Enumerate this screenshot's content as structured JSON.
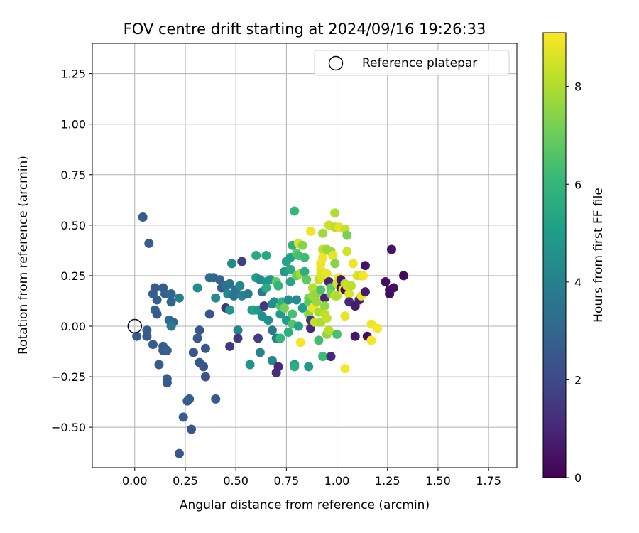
{
  "chart_data": {
    "type": "scatter",
    "title": "FOV centre drift starting at 2024/09/16 19:26:33",
    "xlabel": "Angular distance from reference (arcmin)",
    "ylabel": "Rotation from reference (arcmin)",
    "xlim": [
      -0.21,
      1.89
    ],
    "ylim": [
      -0.7,
      1.4
    ],
    "xticks": [
      0.0,
      0.25,
      0.5,
      0.75,
      1.0,
      1.25,
      1.5,
      1.75
    ],
    "xtick_labels": [
      "0.00",
      "0.25",
      "0.50",
      "0.75",
      "1.00",
      "1.25",
      "1.50",
      "1.75"
    ],
    "yticks": [
      -0.5,
      -0.25,
      0.0,
      0.25,
      0.5,
      0.75,
      1.0,
      1.25
    ],
    "ytick_labels": [
      "−0.50",
      "−0.25",
      "0.00",
      "0.25",
      "0.50",
      "0.75",
      "1.00",
      "1.25"
    ],
    "grid": true,
    "legend": {
      "placement": "top-right",
      "label": "Reference platepar"
    },
    "reference_point": {
      "x": 0.0,
      "y": 0.0
    },
    "colorbar": {
      "label": "Hours from first FF file",
      "range": [
        0,
        9.1
      ],
      "ticks": [
        0,
        2,
        4,
        6,
        8
      ],
      "tick_labels": [
        "0",
        "2",
        "4",
        "6",
        "8"
      ],
      "colormap": "viridis"
    },
    "points": [
      {
        "x": 0.04,
        "y": 0.54,
        "h": 2.6
      },
      {
        "x": 0.07,
        "y": 0.41,
        "h": 2.7
      },
      {
        "x": 0.01,
        "y": -0.05,
        "h": 2.6
      },
      {
        "x": 0.06,
        "y": -0.05,
        "h": 2.6
      },
      {
        "x": 0.06,
        "y": -0.02,
        "h": 2.7
      },
      {
        "x": 0.09,
        "y": 0.16,
        "h": 2.7
      },
      {
        "x": 0.1,
        "y": 0.19,
        "h": 2.6
      },
      {
        "x": 0.11,
        "y": 0.13,
        "h": 2.7
      },
      {
        "x": 0.1,
        "y": 0.08,
        "h": 2.8
      },
      {
        "x": 0.11,
        "y": 0.06,
        "h": 2.6
      },
      {
        "x": 0.09,
        "y": -0.09,
        "h": 2.7
      },
      {
        "x": 0.12,
        "y": -0.19,
        "h": 2.6
      },
      {
        "x": 0.14,
        "y": 0.19,
        "h": 2.6
      },
      {
        "x": 0.15,
        "y": 0.16,
        "h": 2.7
      },
      {
        "x": 0.14,
        "y": -0.1,
        "h": 2.7
      },
      {
        "x": 0.14,
        "y": -0.12,
        "h": 2.6
      },
      {
        "x": 0.16,
        "y": -0.12,
        "h": 2.8
      },
      {
        "x": 0.18,
        "y": 0.16,
        "h": 3.0
      },
      {
        "x": 0.18,
        "y": 0.12,
        "h": 2.9
      },
      {
        "x": 0.17,
        "y": 0.03,
        "h": 3.2
      },
      {
        "x": 0.19,
        "y": 0.02,
        "h": 3.0
      },
      {
        "x": 0.18,
        "y": 0.0,
        "h": 3.7
      },
      {
        "x": 0.16,
        "y": -0.26,
        "h": 2.8
      },
      {
        "x": 0.16,
        "y": -0.28,
        "h": 2.6
      },
      {
        "x": 0.22,
        "y": 0.14,
        "h": 3.9
      },
      {
        "x": 0.24,
        "y": -0.45,
        "h": 2.6
      },
      {
        "x": 0.26,
        "y": -0.37,
        "h": 2.6
      },
      {
        "x": 0.27,
        "y": -0.36,
        "h": 2.7
      },
      {
        "x": 0.28,
        "y": -0.51,
        "h": 2.5
      },
      {
        "x": 0.22,
        "y": -0.63,
        "h": 2.4
      },
      {
        "x": 0.29,
        "y": -0.13,
        "h": 2.5
      },
      {
        "x": 0.31,
        "y": -0.06,
        "h": 2.6
      },
      {
        "x": 0.32,
        "y": -0.02,
        "h": 2.5
      },
      {
        "x": 0.32,
        "y": -0.18,
        "h": 2.5
      },
      {
        "x": 0.34,
        "y": -0.2,
        "h": 2.5
      },
      {
        "x": 0.35,
        "y": -0.25,
        "h": 2.4
      },
      {
        "x": 0.35,
        "y": -0.11,
        "h": 2.5
      },
      {
        "x": 0.31,
        "y": 0.19,
        "h": 4.5
      },
      {
        "x": 0.37,
        "y": 0.24,
        "h": 3.1
      },
      {
        "x": 0.37,
        "y": 0.06,
        "h": 2.5
      },
      {
        "x": 0.4,
        "y": -0.36,
        "h": 2.6
      },
      {
        "x": 0.39,
        "y": 0.24,
        "h": 3.0
      },
      {
        "x": 0.4,
        "y": 0.14,
        "h": 4.4
      },
      {
        "x": 0.42,
        "y": 0.23,
        "h": 2.9
      },
      {
        "x": 0.43,
        "y": 0.19,
        "h": 2.8
      },
      {
        "x": 0.45,
        "y": 0.2,
        "h": 3.4
      },
      {
        "x": 0.45,
        "y": 0.09,
        "h": 1.5
      },
      {
        "x": 0.46,
        "y": 0.16,
        "h": 4.3
      },
      {
        "x": 0.47,
        "y": 0.08,
        "h": 4.8
      },
      {
        "x": 0.47,
        "y": 0.21,
        "h": 3.5
      },
      {
        "x": 0.48,
        "y": 0.31,
        "h": 4.3
      },
      {
        "x": 0.47,
        "y": -0.1,
        "h": 1.5
      },
      {
        "x": 0.49,
        "y": 0.15,
        "h": 3.5
      },
      {
        "x": 0.5,
        "y": 0.18,
        "h": 3.4
      },
      {
        "x": 0.51,
        "y": -0.02,
        "h": 4.2
      },
      {
        "x": 0.51,
        "y": -0.06,
        "h": 1.5
      },
      {
        "x": 0.52,
        "y": 0.2,
        "h": 4.2
      },
      {
        "x": 0.53,
        "y": 0.32,
        "h": 1.7
      },
      {
        "x": 0.53,
        "y": 0.15,
        "h": 4.1
      },
      {
        "x": 0.56,
        "y": 0.16,
        "h": 3.7
      },
      {
        "x": 0.57,
        "y": -0.19,
        "h": 4.7
      },
      {
        "x": 0.58,
        "y": 0.08,
        "h": 5.0
      },
      {
        "x": 0.59,
        "y": 0.08,
        "h": 5.3
      },
      {
        "x": 0.6,
        "y": 0.35,
        "h": 5.5
      },
      {
        "x": 0.6,
        "y": 0.24,
        "h": 5.0
      },
      {
        "x": 0.61,
        "y": 0.08,
        "h": 5.0
      },
      {
        "x": 0.61,
        "y": -0.06,
        "h": 1.6
      },
      {
        "x": 0.62,
        "y": 0.23,
        "h": 4.4
      },
      {
        "x": 0.63,
        "y": 0.17,
        "h": 3.7
      },
      {
        "x": 0.62,
        "y": -0.13,
        "h": 4.1
      },
      {
        "x": 0.63,
        "y": 0.05,
        "h": 4.5
      },
      {
        "x": 0.64,
        "y": 0.1,
        "h": 1.5
      },
      {
        "x": 0.65,
        "y": 0.35,
        "h": 5.5
      },
      {
        "x": 0.65,
        "y": 0.22,
        "h": 4.7
      },
      {
        "x": 0.65,
        "y": 0.19,
        "h": 5.6
      },
      {
        "x": 0.66,
        "y": 0.03,
        "h": 4.6
      },
      {
        "x": 0.67,
        "y": 0.23,
        "h": 4.7
      },
      {
        "x": 0.68,
        "y": 0.11,
        "h": 4.5
      },
      {
        "x": 0.68,
        "y": -0.02,
        "h": 3.6
      },
      {
        "x": 0.68,
        "y": -0.17,
        "h": 4.3
      },
      {
        "x": 0.69,
        "y": 0.12,
        "h": 4.6
      },
      {
        "x": 0.7,
        "y": -0.06,
        "h": 4.0
      },
      {
        "x": 0.7,
        "y": -0.23,
        "h": 1.2
      },
      {
        "x": 0.71,
        "y": -0.2,
        "h": 1.0
      },
      {
        "x": 0.7,
        "y": 0.22,
        "h": 6.8
      },
      {
        "x": 0.71,
        "y": 0.2,
        "h": 5.9
      },
      {
        "x": 0.72,
        "y": 0.06,
        "h": 4.9
      },
      {
        "x": 0.72,
        "y": -0.06,
        "h": 6.0
      },
      {
        "x": 0.72,
        "y": 0.1,
        "h": 6.6
      },
      {
        "x": 0.73,
        "y": 0.12,
        "h": 5.8
      },
      {
        "x": 0.74,
        "y": 0.09,
        "h": 7.2
      },
      {
        "x": 0.74,
        "y": 0.27,
        "h": 4.9
      },
      {
        "x": 0.75,
        "y": 0.32,
        "h": 5.3
      },
      {
        "x": 0.75,
        "y": 0.03,
        "h": 5.0
      },
      {
        "x": 0.76,
        "y": 0.13,
        "h": 4.4
      },
      {
        "x": 0.76,
        "y": -0.03,
        "h": 5.7
      },
      {
        "x": 0.77,
        "y": 0.34,
        "h": 5.2
      },
      {
        "x": 0.77,
        "y": 0.28,
        "h": 5.5
      },
      {
        "x": 0.77,
        "y": 0.22,
        "h": 5.3
      },
      {
        "x": 0.78,
        "y": 0.4,
        "h": 5.8
      },
      {
        "x": 0.78,
        "y": 0.06,
        "h": 6.4
      },
      {
        "x": 0.78,
        "y": 0.01,
        "h": 6.6
      },
      {
        "x": 0.79,
        "y": 0.57,
        "h": 6.0
      },
      {
        "x": 0.79,
        "y": -0.19,
        "h": 5.0
      },
      {
        "x": 0.79,
        "y": -0.2,
        "h": 5.7
      },
      {
        "x": 0.8,
        "y": 0.36,
        "h": 6.8
      },
      {
        "x": 0.8,
        "y": 0.25,
        "h": 7.1
      },
      {
        "x": 0.8,
        "y": 0.13,
        "h": 4.5
      },
      {
        "x": 0.81,
        "y": 0.41,
        "h": 8.6
      },
      {
        "x": 0.81,
        "y": 0.35,
        "h": 6.4
      },
      {
        "x": 0.81,
        "y": 0.0,
        "h": 5.3
      },
      {
        "x": 0.82,
        "y": -0.08,
        "h": 9.0
      },
      {
        "x": 0.82,
        "y": 0.26,
        "h": 7.8
      },
      {
        "x": 0.83,
        "y": 0.4,
        "h": 7.4
      },
      {
        "x": 0.83,
        "y": 0.09,
        "h": 5.1
      },
      {
        "x": 0.84,
        "y": 0.34,
        "h": 6.2
      },
      {
        "x": 0.84,
        "y": 0.27,
        "h": 5.7
      },
      {
        "x": 0.85,
        "y": 0.23,
        "h": 6.8
      },
      {
        "x": 0.86,
        "y": 0.14,
        "h": 7.3
      },
      {
        "x": 0.86,
        "y": 0.12,
        "h": 6.8
      },
      {
        "x": 0.86,
        "y": 0.06,
        "h": 7.5
      },
      {
        "x": 0.86,
        "y": -0.2,
        "h": 5.0
      },
      {
        "x": 0.87,
        "y": -0.01,
        "h": 1.0
      },
      {
        "x": 0.87,
        "y": 0.47,
        "h": 8.9
      },
      {
        "x": 0.87,
        "y": 0.03,
        "h": 1.3
      },
      {
        "x": 0.88,
        "y": 0.19,
        "h": 8.1
      },
      {
        "x": 0.88,
        "y": 0.15,
        "h": 7.7
      },
      {
        "x": 0.88,
        "y": 0.09,
        "h": 8.8
      },
      {
        "x": 0.89,
        "y": 0.1,
        "h": 9.0
      },
      {
        "x": 0.89,
        "y": 0.02,
        "h": 8.2
      },
      {
        "x": 0.9,
        "y": 0.12,
        "h": 7.7
      },
      {
        "x": 0.9,
        "y": 0.16,
        "h": 7.6
      },
      {
        "x": 0.91,
        "y": 0.23,
        "h": 8.3
      },
      {
        "x": 0.91,
        "y": 0.07,
        "h": 7.9
      },
      {
        "x": 0.91,
        "y": -0.07,
        "h": 6.3
      },
      {
        "x": 0.92,
        "y": 0.28,
        "h": 8.9
      },
      {
        "x": 0.92,
        "y": 0.31,
        "h": 8.9
      },
      {
        "x": 0.92,
        "y": 0.26,
        "h": 8.7
      },
      {
        "x": 0.92,
        "y": 0.02,
        "h": 8.0
      },
      {
        "x": 0.92,
        "y": 0.18,
        "h": 6.5
      },
      {
        "x": 0.93,
        "y": 0.46,
        "h": 7.8
      },
      {
        "x": 0.93,
        "y": 0.38,
        "h": 8.3
      },
      {
        "x": 0.93,
        "y": 0.34,
        "h": 8.9
      },
      {
        "x": 0.93,
        "y": 0.24,
        "h": 8.6
      },
      {
        "x": 0.93,
        "y": -0.15,
        "h": 6.2
      },
      {
        "x": 0.94,
        "y": 0.14,
        "h": 0.9
      },
      {
        "x": 0.94,
        "y": 0.1,
        "h": 7.6
      },
      {
        "x": 0.94,
        "y": 0.06,
        "h": 8.2
      },
      {
        "x": 0.95,
        "y": 0.38,
        "h": 7.7
      },
      {
        "x": 0.95,
        "y": 0.26,
        "h": 8.8
      },
      {
        "x": 0.95,
        "y": 0.04,
        "h": 8.3
      },
      {
        "x": 0.95,
        "y": -0.04,
        "h": 7.6
      },
      {
        "x": 0.96,
        "y": 0.22,
        "h": 0.9
      },
      {
        "x": 0.96,
        "y": 0.5,
        "h": 8.4
      },
      {
        "x": 0.96,
        "y": -0.02,
        "h": 8.1
      },
      {
        "x": 0.97,
        "y": 0.37,
        "h": 7.7
      },
      {
        "x": 0.97,
        "y": 0.19,
        "h": 6.8
      },
      {
        "x": 0.97,
        "y": 0.16,
        "h": 7.2
      },
      {
        "x": 0.97,
        "y": -0.15,
        "h": 1.0
      },
      {
        "x": 0.98,
        "y": 0.35,
        "h": 8.8
      },
      {
        "x": 0.99,
        "y": 0.56,
        "h": 8.0
      },
      {
        "x": 0.99,
        "y": 0.49,
        "h": 8.1
      },
      {
        "x": 0.99,
        "y": 0.31,
        "h": 7.4
      },
      {
        "x": 0.99,
        "y": 0.15,
        "h": 8.3
      },
      {
        "x": 1.0,
        "y": 0.21,
        "h": 8.4
      },
      {
        "x": 1.0,
        "y": 0.15,
        "h": 8.0
      },
      {
        "x": 1.0,
        "y": -0.04,
        "h": 6.4
      },
      {
        "x": 1.01,
        "y": 0.49,
        "h": 8.7
      },
      {
        "x": 1.01,
        "y": 0.24,
        "h": 8.9
      },
      {
        "x": 1.02,
        "y": 0.23,
        "h": 0.6
      },
      {
        "x": 1.02,
        "y": 0.19,
        "h": 0.4
      },
      {
        "x": 1.03,
        "y": 0.18,
        "h": 9.0
      },
      {
        "x": 1.04,
        "y": 0.48,
        "h": 8.3
      },
      {
        "x": 1.04,
        "y": 0.21,
        "h": 8.1
      },
      {
        "x": 1.04,
        "y": 0.18,
        "h": 0.3
      },
      {
        "x": 1.04,
        "y": 0.05,
        "h": 8.8
      },
      {
        "x": 1.04,
        "y": -0.21,
        "h": 9.0
      },
      {
        "x": 1.05,
        "y": 0.45,
        "h": 7.2
      },
      {
        "x": 1.05,
        "y": 0.37,
        "h": 8.5
      },
      {
        "x": 1.05,
        "y": 0.2,
        "h": 8.4
      },
      {
        "x": 1.06,
        "y": 0.16,
        "h": 8.6
      },
      {
        "x": 1.06,
        "y": 0.12,
        "h": 1.0
      },
      {
        "x": 1.07,
        "y": 0.2,
        "h": 8.2
      },
      {
        "x": 1.08,
        "y": 0.31,
        "h": 8.9
      },
      {
        "x": 1.09,
        "y": 0.1,
        "h": 0.7
      },
      {
        "x": 1.09,
        "y": -0.05,
        "h": 0.6
      },
      {
        "x": 1.1,
        "y": 0.25,
        "h": 8.6
      },
      {
        "x": 1.11,
        "y": 0.13,
        "h": 0.8
      },
      {
        "x": 1.12,
        "y": 0.25,
        "h": 8.3
      },
      {
        "x": 1.12,
        "y": 0.15,
        "h": 8.8
      },
      {
        "x": 1.13,
        "y": 0.25,
        "h": 9.0
      },
      {
        "x": 1.14,
        "y": 0.3,
        "h": 0.5
      },
      {
        "x": 1.14,
        "y": 0.17,
        "h": 0.7
      },
      {
        "x": 1.15,
        "y": -0.05,
        "h": 0.3
      },
      {
        "x": 1.17,
        "y": 0.01,
        "h": 8.9
      },
      {
        "x": 1.17,
        "y": -0.07,
        "h": 9.0
      },
      {
        "x": 1.2,
        "y": -0.01,
        "h": 9.0
      },
      {
        "x": 1.24,
        "y": 0.22,
        "h": 0.4
      },
      {
        "x": 1.26,
        "y": 0.18,
        "h": 0.5
      },
      {
        "x": 1.26,
        "y": 0.16,
        "h": 0.3
      },
      {
        "x": 1.27,
        "y": 0.38,
        "h": 0.5
      },
      {
        "x": 1.28,
        "y": 0.19,
        "h": 0.4
      },
      {
        "x": 1.33,
        "y": 0.25,
        "h": 0.2
      }
    ]
  }
}
